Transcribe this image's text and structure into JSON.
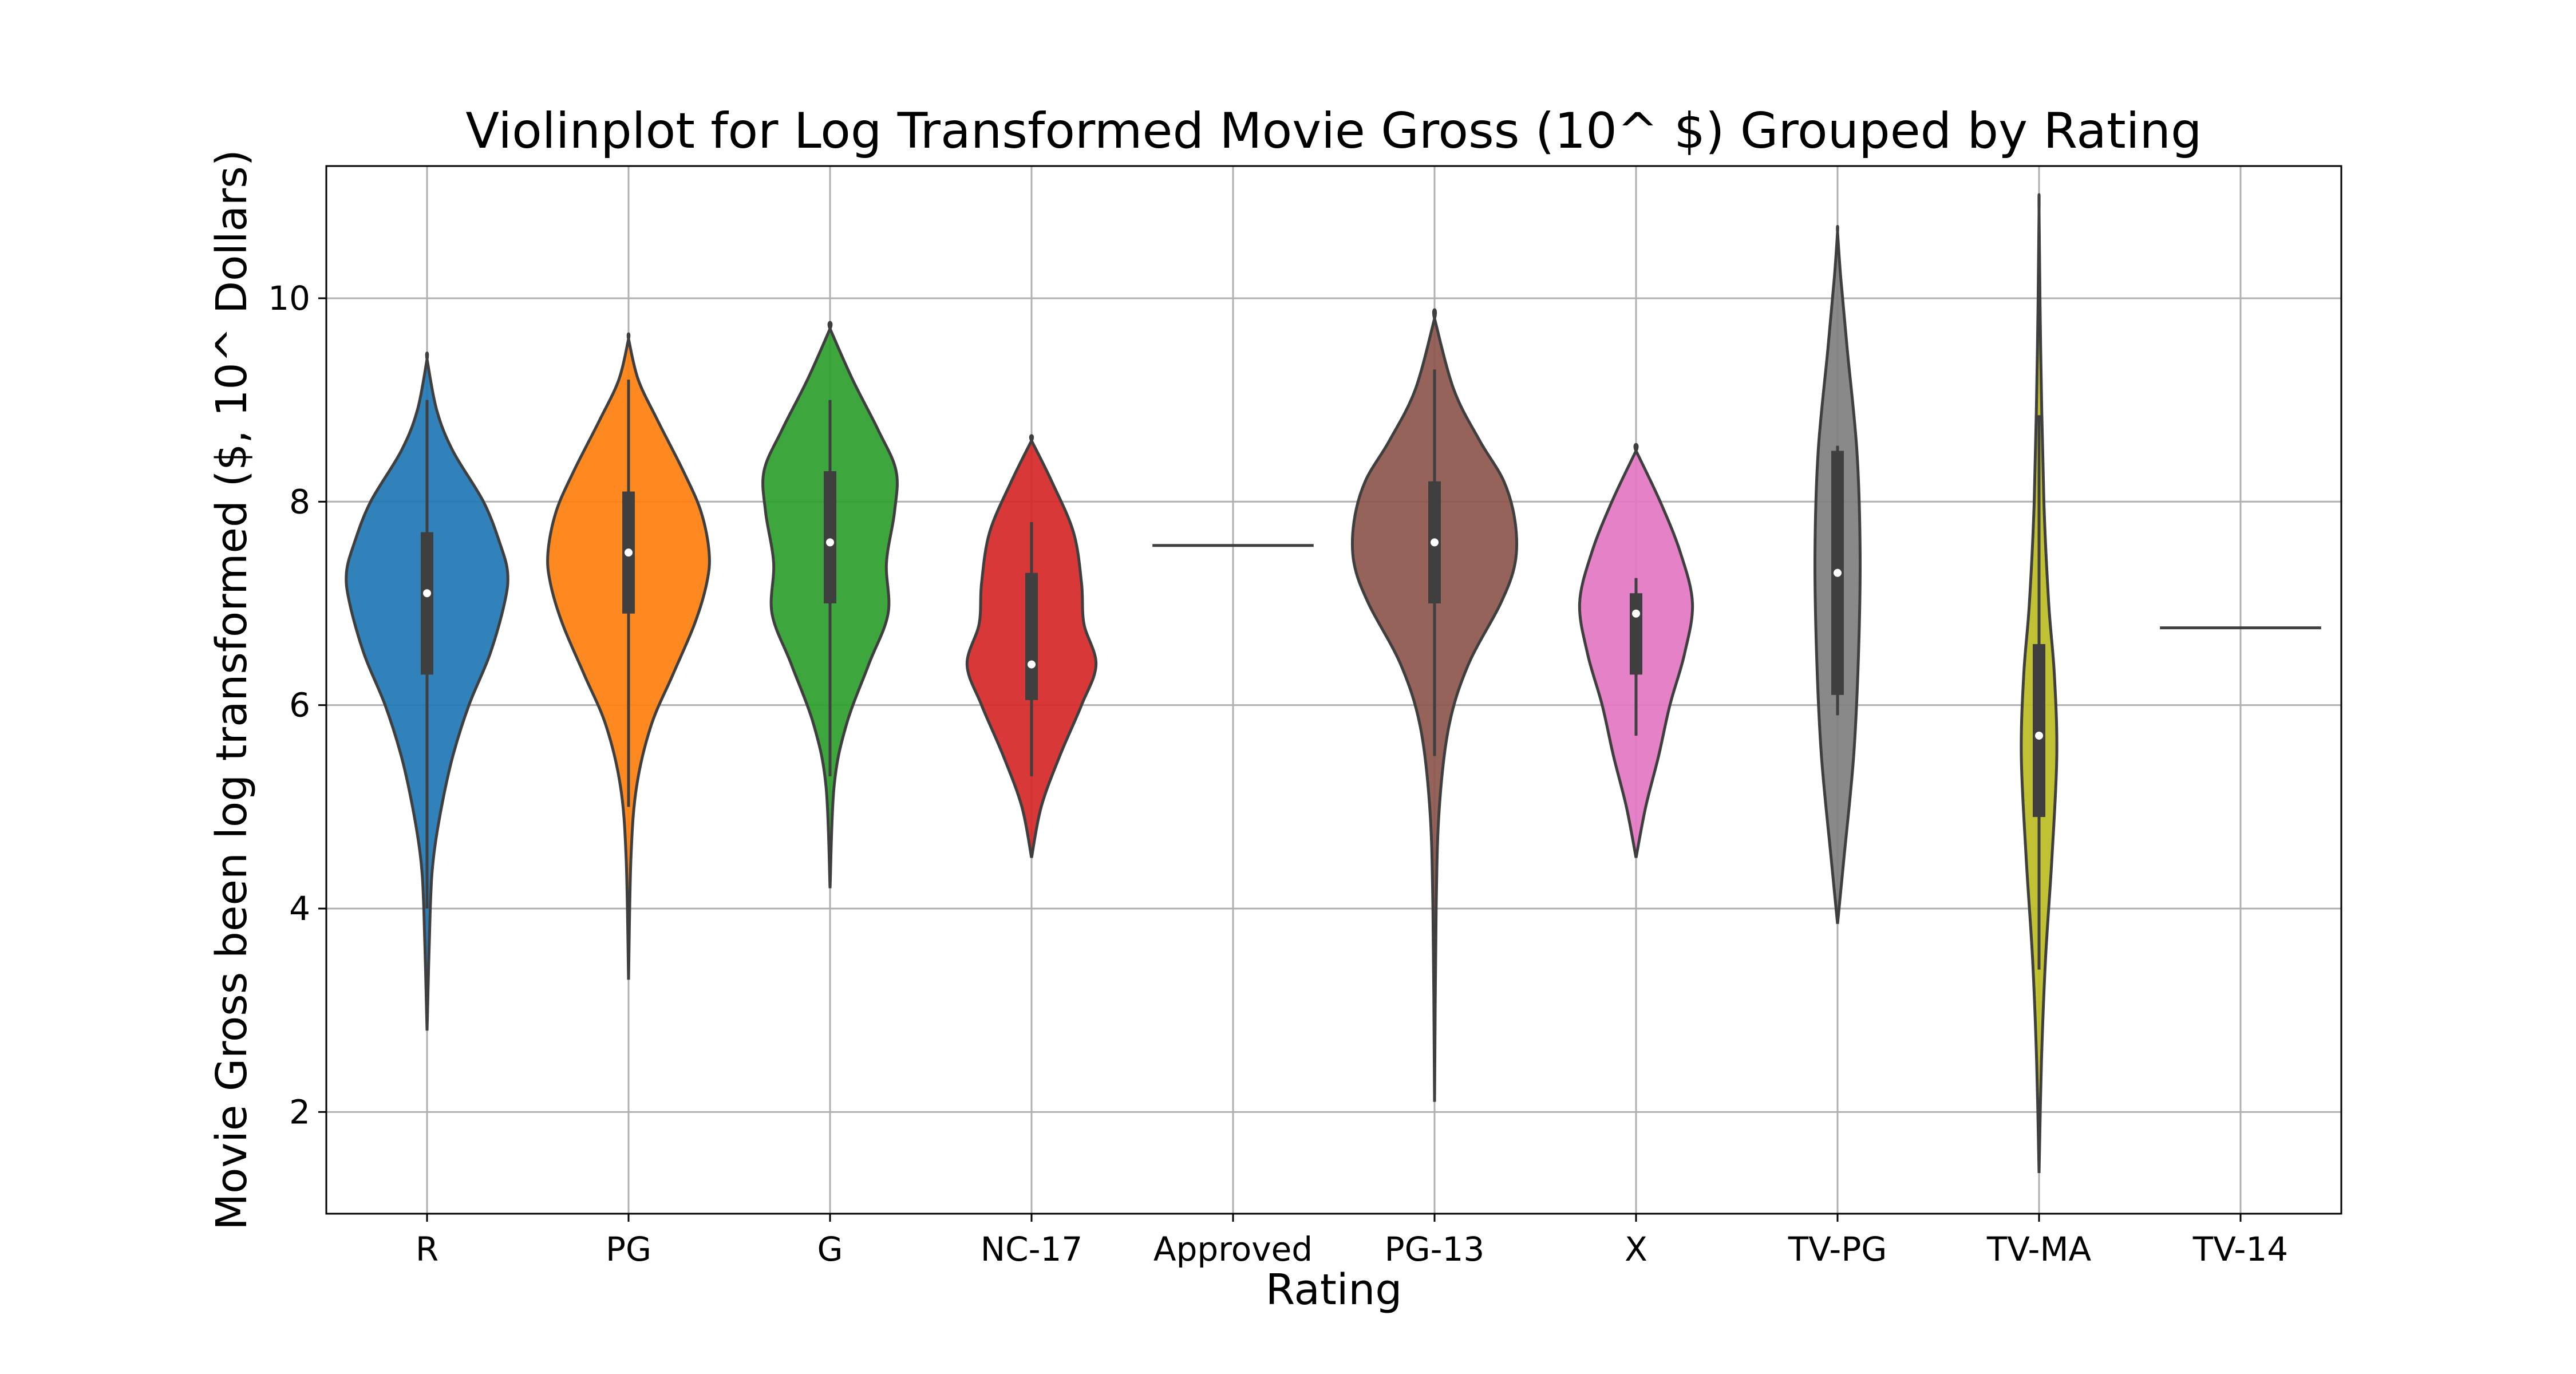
{
  "chart_data": {
    "type": "violin",
    "title": "Violinplot for Log Transformed Movie Gross (10^ $) Grouped by Rating",
    "xlabel": "Rating",
    "ylabel": "Movie Gross been log transformed ($, 10^ Dollars)",
    "ylim": [
      1,
      11.3
    ],
    "yticks": [
      2,
      4,
      6,
      8,
      10
    ],
    "grid": true,
    "categories": [
      "R",
      "PG",
      "G",
      "NC-17",
      "Approved",
      "PG-13",
      "X",
      "TV-PG",
      "TV-MA",
      "TV-14"
    ],
    "series": [
      {
        "category": "R",
        "color": "#1f77b4",
        "min": 2.8,
        "max": 9.4,
        "q1": 6.3,
        "median": 7.1,
        "q3": 7.7,
        "whisker_low": 4.0,
        "whisker_high": 9.0,
        "density": [
          [
            2.8,
            0.0
          ],
          [
            4.0,
            0.04
          ],
          [
            4.5,
            0.08
          ],
          [
            5.0,
            0.18
          ],
          [
            5.5,
            0.32
          ],
          [
            6.0,
            0.52
          ],
          [
            6.5,
            0.78
          ],
          [
            7.0,
            0.96
          ],
          [
            7.3,
            1.0
          ],
          [
            7.6,
            0.9
          ],
          [
            8.0,
            0.7
          ],
          [
            8.5,
            0.32
          ],
          [
            8.9,
            0.12
          ],
          [
            9.4,
            0.0
          ]
        ]
      },
      {
        "category": "PG",
        "color": "#ff7f0e",
        "min": 3.3,
        "max": 9.6,
        "q1": 6.9,
        "median": 7.5,
        "q3": 8.1,
        "whisker_low": 5.0,
        "whisker_high": 9.2,
        "density": [
          [
            3.3,
            0.0
          ],
          [
            4.5,
            0.03
          ],
          [
            5.2,
            0.1
          ],
          [
            5.8,
            0.28
          ],
          [
            6.3,
            0.55
          ],
          [
            6.8,
            0.82
          ],
          [
            7.2,
            0.97
          ],
          [
            7.5,
            1.0
          ],
          [
            7.9,
            0.9
          ],
          [
            8.3,
            0.68
          ],
          [
            8.8,
            0.36
          ],
          [
            9.2,
            0.12
          ],
          [
            9.6,
            0.0
          ]
        ]
      },
      {
        "category": "G",
        "color": "#2ca02c",
        "min": 4.2,
        "max": 9.7,
        "q1": 7.0,
        "median": 7.6,
        "q3": 8.3,
        "whisker_low": 5.3,
        "whisker_high": 9.0,
        "density": [
          [
            4.2,
            0.0
          ],
          [
            5.2,
            0.05
          ],
          [
            5.8,
            0.2
          ],
          [
            6.4,
            0.48
          ],
          [
            6.9,
            0.72
          ],
          [
            7.4,
            0.7
          ],
          [
            7.9,
            0.8
          ],
          [
            8.3,
            0.82
          ],
          [
            8.7,
            0.6
          ],
          [
            9.2,
            0.28
          ],
          [
            9.7,
            0.0
          ]
        ]
      },
      {
        "category": "NC-17",
        "color": "#d62728",
        "min": 4.5,
        "max": 8.6,
        "q1": 6.05,
        "median": 6.4,
        "q3": 7.3,
        "whisker_low": 5.3,
        "whisker_high": 7.8,
        "density": [
          [
            4.5,
            0.0
          ],
          [
            5.0,
            0.12
          ],
          [
            5.5,
            0.35
          ],
          [
            6.0,
            0.62
          ],
          [
            6.4,
            0.8
          ],
          [
            6.8,
            0.65
          ],
          [
            7.2,
            0.62
          ],
          [
            7.7,
            0.52
          ],
          [
            8.2,
            0.25
          ],
          [
            8.6,
            0.0
          ]
        ]
      },
      {
        "category": "Approved",
        "color": "#9467bd",
        "value": 7.57
      },
      {
        "category": "PG-13",
        "color": "#8c564b",
        "min": 2.1,
        "max": 9.8,
        "q1": 7.0,
        "median": 7.6,
        "q3": 8.2,
        "whisker_low": 5.5,
        "whisker_high": 9.3,
        "density": [
          [
            2.1,
            0.0
          ],
          [
            4.0,
            0.02
          ],
          [
            5.0,
            0.06
          ],
          [
            5.8,
            0.18
          ],
          [
            6.4,
            0.42
          ],
          [
            7.0,
            0.82
          ],
          [
            7.4,
            1.0
          ],
          [
            7.8,
            1.0
          ],
          [
            8.2,
            0.86
          ],
          [
            8.6,
            0.56
          ],
          [
            9.1,
            0.24
          ],
          [
            9.8,
            0.0
          ]
        ]
      },
      {
        "category": "X",
        "color": "#e377c2",
        "min": 4.5,
        "max": 8.5,
        "q1": 6.3,
        "median": 6.9,
        "q3": 7.1,
        "whisker_low": 5.7,
        "whisker_high": 7.25,
        "density": [
          [
            4.5,
            0.0
          ],
          [
            5.0,
            0.12
          ],
          [
            5.5,
            0.28
          ],
          [
            6.0,
            0.42
          ],
          [
            6.5,
            0.6
          ],
          [
            7.0,
            0.7
          ],
          [
            7.5,
            0.55
          ],
          [
            8.0,
            0.3
          ],
          [
            8.5,
            0.0
          ]
        ]
      },
      {
        "category": "TV-PG",
        "color": "#7f7f7f",
        "min": 3.85,
        "max": 10.65,
        "q1": 6.1,
        "median": 7.3,
        "q3": 8.5,
        "whisker_low": 5.9,
        "whisker_high": 8.55,
        "density": [
          [
            3.85,
            0.0
          ],
          [
            4.5,
            0.08
          ],
          [
            5.5,
            0.2
          ],
          [
            6.5,
            0.26
          ],
          [
            7.5,
            0.28
          ],
          [
            8.5,
            0.24
          ],
          [
            9.5,
            0.12
          ],
          [
            10.2,
            0.04
          ],
          [
            10.65,
            0.0
          ]
        ]
      },
      {
        "category": "TV-MA",
        "color": "#bcbd22",
        "min": 1.4,
        "max": 10.85,
        "q1": 4.9,
        "median": 5.7,
        "q3": 6.6,
        "whisker_low": 3.4,
        "whisker_high": 8.85,
        "density": [
          [
            1.4,
            0.0
          ],
          [
            2.5,
            0.03
          ],
          [
            3.5,
            0.08
          ],
          [
            4.5,
            0.16
          ],
          [
            5.5,
            0.22
          ],
          [
            6.3,
            0.19
          ],
          [
            7.0,
            0.12
          ],
          [
            8.0,
            0.06
          ],
          [
            9.5,
            0.02
          ],
          [
            10.85,
            0.0
          ]
        ]
      },
      {
        "category": "TV-14",
        "color": "#17becf",
        "value": 6.76
      }
    ]
  }
}
